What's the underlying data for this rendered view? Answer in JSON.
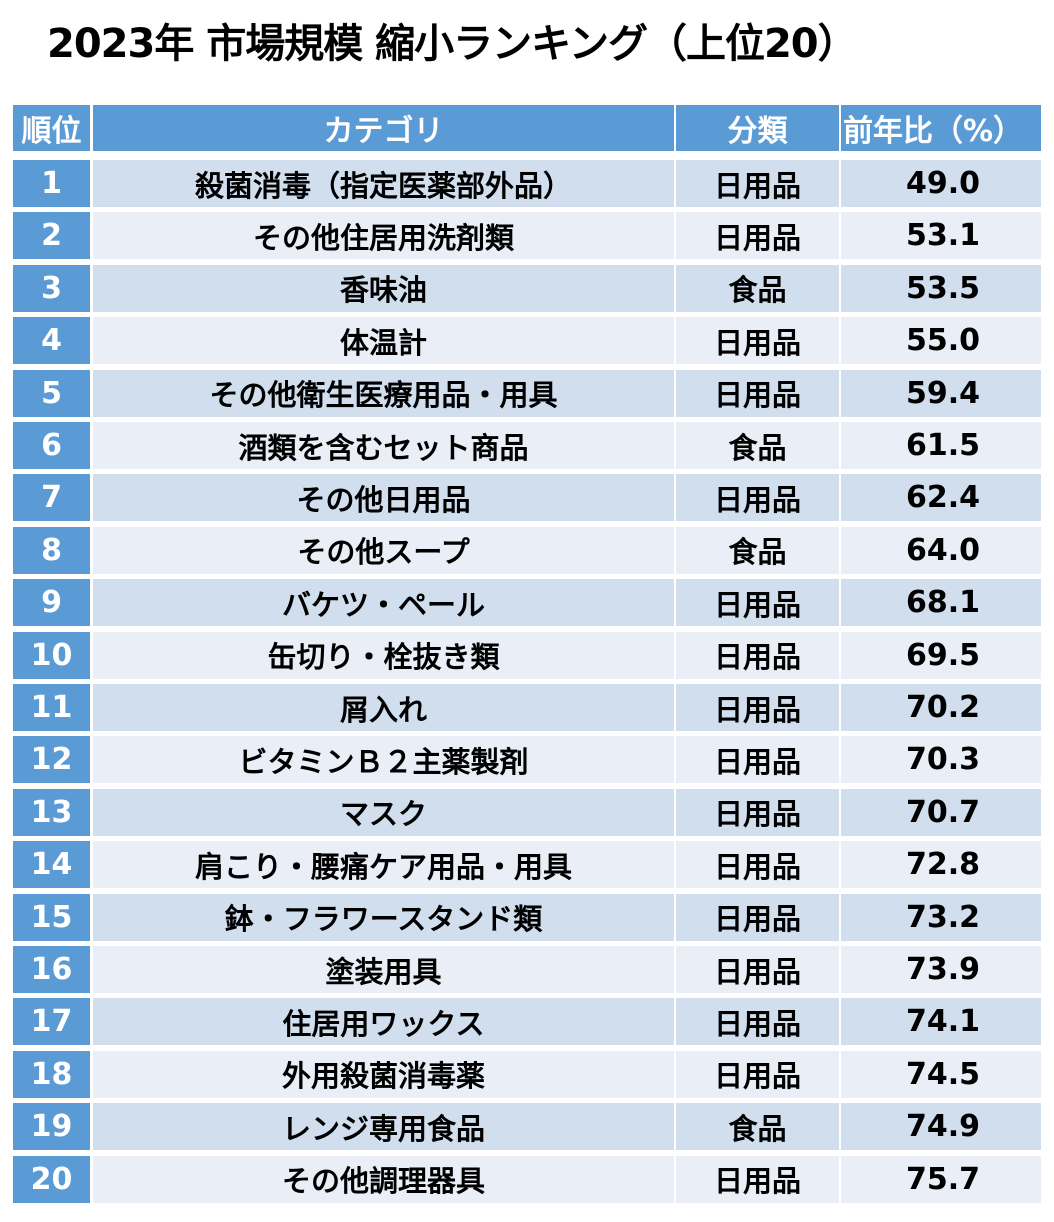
{
  "title": "2023年 市場規模 縮小ランキング（上位20）",
  "table": {
    "headers": {
      "rank": "順位",
      "category": "カテゴリ",
      "classification": "分類",
      "yoy": "前年比（%）"
    },
    "rows": [
      {
        "rank": "1",
        "category": "殺菌消毒（指定医薬部外品）",
        "classification": "日用品",
        "yoy": "49.0"
      },
      {
        "rank": "2",
        "category": "その他住居用洗剤類",
        "classification": "日用品",
        "yoy": "53.1"
      },
      {
        "rank": "3",
        "category": "香味油",
        "classification": "食品",
        "yoy": "53.5"
      },
      {
        "rank": "4",
        "category": "体温計",
        "classification": "日用品",
        "yoy": "55.0"
      },
      {
        "rank": "5",
        "category": "その他衛生医療用品・用具",
        "classification": "日用品",
        "yoy": "59.4"
      },
      {
        "rank": "6",
        "category": "酒類を含むセット商品",
        "classification": "食品",
        "yoy": "61.5"
      },
      {
        "rank": "7",
        "category": "その他日用品",
        "classification": "日用品",
        "yoy": "62.4"
      },
      {
        "rank": "8",
        "category": "その他スープ",
        "classification": "食品",
        "yoy": "64.0"
      },
      {
        "rank": "9",
        "category": "バケツ・ペール",
        "classification": "日用品",
        "yoy": "68.1"
      },
      {
        "rank": "10",
        "category": "缶切り・栓抜き類",
        "classification": "日用品",
        "yoy": "69.5"
      },
      {
        "rank": "11",
        "category": "屑入れ",
        "classification": "日用品",
        "yoy": "70.2"
      },
      {
        "rank": "12",
        "category": "ビタミンＢ２主薬製剤",
        "classification": "日用品",
        "yoy": "70.3"
      },
      {
        "rank": "13",
        "category": "マスク",
        "classification": "日用品",
        "yoy": "70.7"
      },
      {
        "rank": "14",
        "category": "肩こり・腰痛ケア用品・用具",
        "classification": "日用品",
        "yoy": "72.8"
      },
      {
        "rank": "15",
        "category": "鉢・フラワースタンド類",
        "classification": "日用品",
        "yoy": "73.2"
      },
      {
        "rank": "16",
        "category": "塗装用具",
        "classification": "日用品",
        "yoy": "73.9"
      },
      {
        "rank": "17",
        "category": "住居用ワックス",
        "classification": "日用品",
        "yoy": "74.1"
      },
      {
        "rank": "18",
        "category": "外用殺菌消毒薬",
        "classification": "日用品",
        "yoy": "74.5"
      },
      {
        "rank": "19",
        "category": "レンジ専用食品",
        "classification": "食品",
        "yoy": "74.9"
      },
      {
        "rank": "20",
        "category": "その他調理器具",
        "classification": "日用品",
        "yoy": "75.7"
      }
    ]
  },
  "colors": {
    "header_blue": "#5B9BD5",
    "row_odd": "#D0DEEE",
    "row_even": "#E9EEF7"
  }
}
